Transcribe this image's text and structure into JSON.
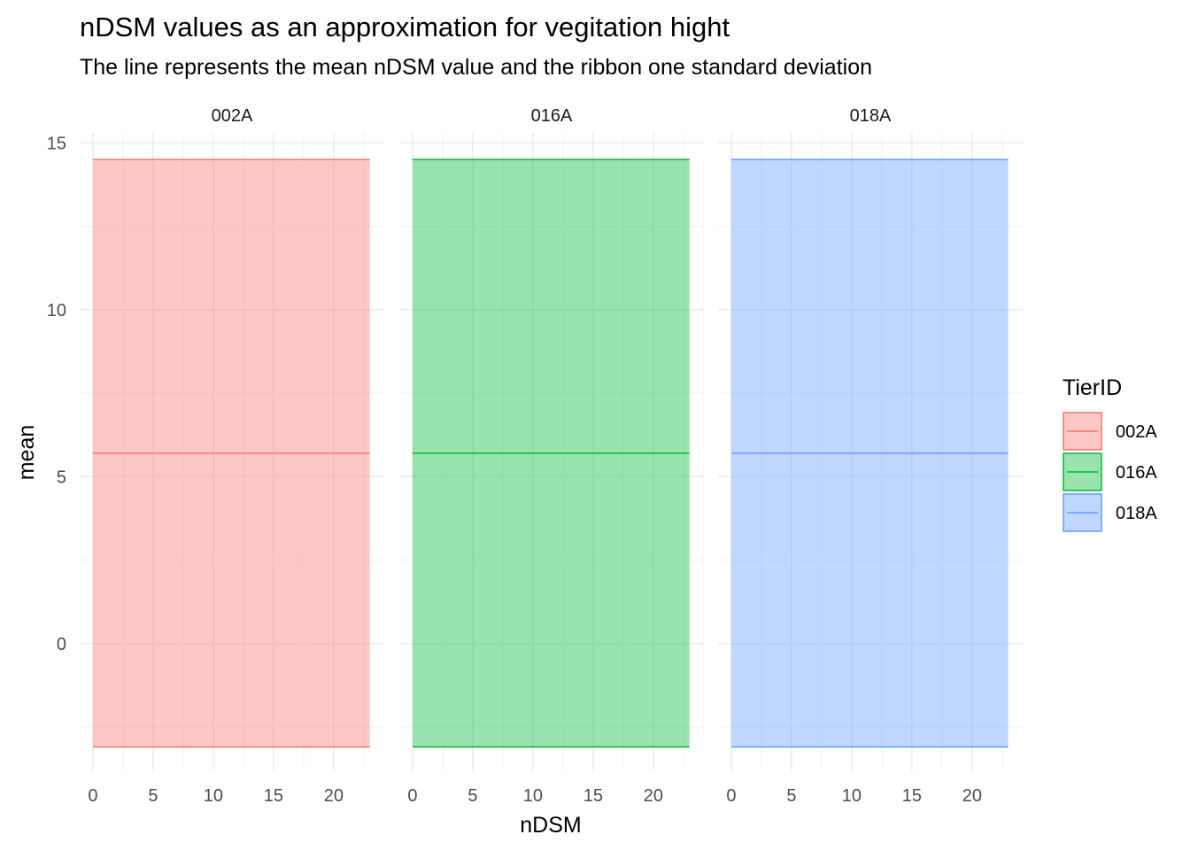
{
  "chart_data": {
    "type": "area",
    "title": "nDSM values as an approximation for vegitation hight",
    "subtitle": "The line represents the mean nDSM value and the ribbon one standard deviation",
    "xlabel": "nDSM",
    "ylabel": "mean",
    "xlim": [
      -1.1,
      24.2
    ],
    "ylim": [
      -3.8,
      15.3
    ],
    "x_ticks": [
      0,
      5,
      10,
      15,
      20
    ],
    "y_ticks": [
      0,
      5,
      10,
      15
    ],
    "grid": true,
    "legend": {
      "title": "TierID",
      "position": "right"
    },
    "facets": [
      {
        "name": "002A",
        "color": "#F8766D",
        "x": [
          0,
          23
        ],
        "mean": 5.7,
        "lower": -3.1,
        "upper": 14.5
      },
      {
        "name": "016A",
        "color": "#00BA38",
        "x": [
          0,
          23
        ],
        "mean": 5.7,
        "lower": -3.1,
        "upper": 14.5
      },
      {
        "name": "018A",
        "color": "#619CFF",
        "x": [
          0,
          23
        ],
        "mean": 5.7,
        "lower": -3.1,
        "upper": 14.5
      }
    ]
  }
}
